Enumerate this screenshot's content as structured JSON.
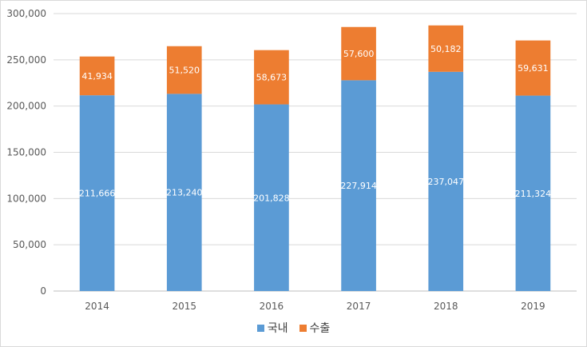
{
  "chart_data": {
    "type": "bar",
    "stacked": true,
    "categories": [
      "2014",
      "2015",
      "2016",
      "2017",
      "2018",
      "2019"
    ],
    "series": [
      {
        "name": "국내",
        "color": "#5b9bd5",
        "values": [
          211666,
          213240,
          201828,
          227914,
          237047,
          211324
        ],
        "labels": [
          "211,666",
          "213,240",
          "201,828",
          "227,914",
          "237,047",
          "211,324"
        ]
      },
      {
        "name": "수출",
        "color": "#ed7d31",
        "values": [
          41934,
          51520,
          58673,
          57600,
          50182,
          59631
        ],
        "labels": [
          "41,934",
          "51,520",
          "58,673",
          "57,600",
          "50,182",
          "59,631"
        ]
      }
    ],
    "ylim": [
      0,
      300000
    ],
    "yticks": [
      "0",
      "50,000",
      "100,000",
      "150,000",
      "200,000",
      "250,000",
      "300,000"
    ],
    "grid": true,
    "legend_position": "bottom"
  },
  "legend": [
    {
      "label": "국내",
      "color": "#5b9bd5"
    },
    {
      "label": "수출",
      "color": "#ed7d31"
    }
  ]
}
